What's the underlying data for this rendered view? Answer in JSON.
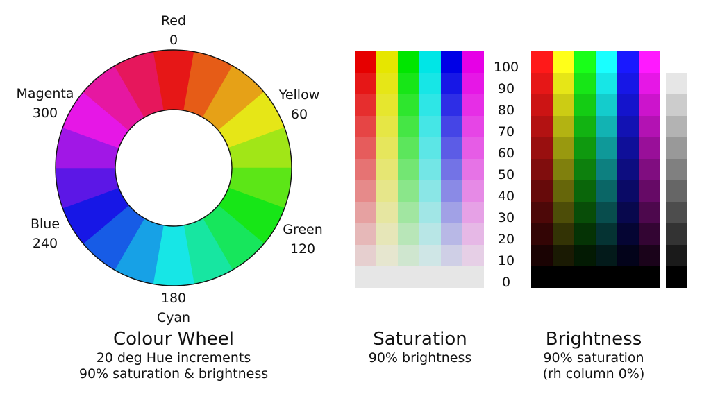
{
  "wheel": {
    "segments": 18,
    "hue_step_deg": 20,
    "saturation": 0.9,
    "brightness": 0.9,
    "labels": [
      {
        "name": "Red",
        "value": "0",
        "hue": 0
      },
      {
        "name": "Yellow",
        "value": "60",
        "hue": 60
      },
      {
        "name": "Green",
        "value": "120",
        "hue": 120
      },
      {
        "name": "Cyan",
        "value": "180",
        "hue": 180
      },
      {
        "name": "Blue",
        "value": "240",
        "hue": 240
      },
      {
        "name": "Magenta",
        "value": "300",
        "hue": 300
      }
    ],
    "caption": {
      "title": "Colour Wheel",
      "line1": "20 deg Hue increments",
      "line2": "90% saturation & brightness"
    }
  },
  "grid_hues": [
    0,
    60,
    120,
    180,
    240,
    300
  ],
  "saturation_grid": {
    "brightness": 0.9,
    "caption": {
      "title": "Saturation",
      "line1": "90% brightness"
    }
  },
  "scale_levels": [
    "100",
    "90",
    "80",
    "70",
    "60",
    "50",
    "40",
    "30",
    "20",
    "10",
    "0"
  ],
  "brightness_grid": {
    "saturation": 0.9,
    "caption": {
      "title": "Brightness",
      "line1": "90% saturation",
      "line2": "(rh column 0%)"
    }
  }
}
